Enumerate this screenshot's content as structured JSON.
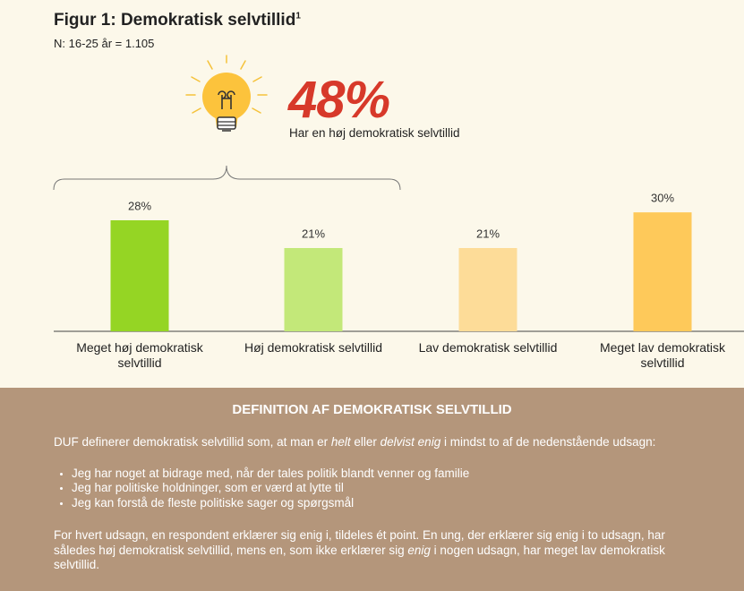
{
  "chart_data": {
    "type": "bar",
    "title": "Figur 1: Demokratisk selvtillid",
    "title_note": "1",
    "subtitle": "N: 16-25 år = 1.105",
    "callout": "48%",
    "callout_text": "Har en høj demokratisk selvtillid",
    "categories": [
      "Meget høj demokratisk selvtillid",
      "Høj demokratisk selvtillid",
      "Lav demokratisk selvtillid",
      "Meget lav demokratisk selvtillid"
    ],
    "values": [
      28,
      21,
      21,
      30
    ],
    "value_labels": [
      "28%",
      "21%",
      "21%",
      "30%"
    ],
    "colors": [
      "#95d524",
      "#c3e879",
      "#fddc98",
      "#fec95a"
    ]
  },
  "definition": {
    "heading": "DEFINITION AF DEMOKRATISK SELVTILLID",
    "intro": [
      "DUF definerer demokratisk selvtillid som, at man er ",
      "helt",
      " eller ",
      "delvist enig",
      " i mindst to af de nedenstående udsagn:"
    ],
    "items": [
      "Jeg har noget at bidrage med, når der tales politik blandt venner og familie",
      "Jeg har politiske holdninger, som er værd at lytte til",
      "Jeg kan forstå de fleste politiske sager og spørgsmål"
    ],
    "outro": [
      "For hvert udsagn, en respondent erklærer sig enig i, tildeles ét point. En ung, der erklærer sig enig i to udsagn, har således høj demokratisk selvtillid, mens en, som ikke erklærer sig ",
      "enig",
      " i nogen udsagn, har meget lav demokratisk selvtillid."
    ]
  }
}
